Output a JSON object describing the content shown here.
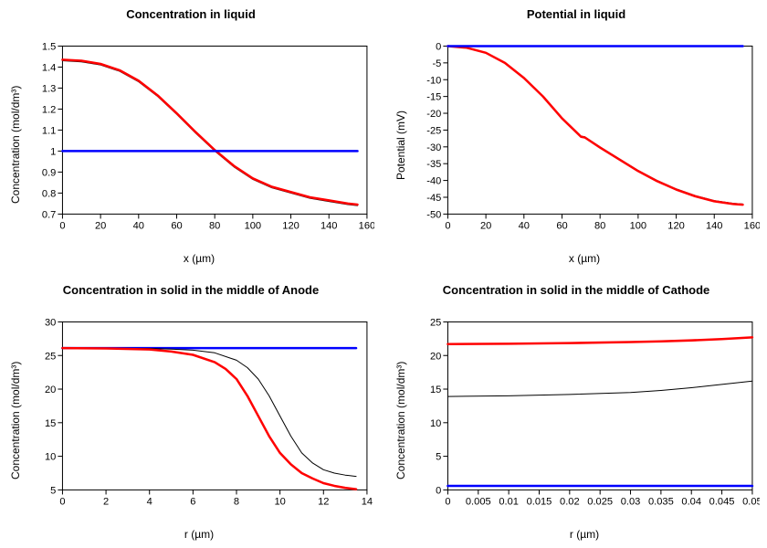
{
  "layout": {
    "cols": 2,
    "rows": 2,
    "background_color": "#ffffff"
  },
  "font": {
    "family": "Arial",
    "title_size": 13,
    "title_weight": "bold",
    "label_size": 12,
    "tick_size": 11
  },
  "colors": {
    "axis": "#000000",
    "series_red": "#ff0000",
    "series_black": "#000000",
    "series_blue": "#0000ff"
  },
  "panels": [
    {
      "id": "liq_conc",
      "title": "Concentration in liquid",
      "xlabel": "x (µm)",
      "ylabel": "Concentration (mol/dm³)",
      "xlim": [
        0,
        160
      ],
      "xtick_step": 20,
      "ylim": [
        0.7,
        1.5
      ],
      "ytick_step": 0.1,
      "series": [
        {
          "name": "black",
          "color": "#000000",
          "width": 1.0,
          "x": [
            0,
            10,
            20,
            30,
            40,
            50,
            60,
            70,
            80,
            90,
            100,
            110,
            120,
            130,
            140,
            150,
            155
          ],
          "y": [
            1.43,
            1.425,
            1.41,
            1.38,
            1.33,
            1.26,
            1.175,
            1.085,
            1.0,
            0.925,
            0.865,
            0.825,
            0.8,
            0.775,
            0.76,
            0.745,
            0.74
          ]
        },
        {
          "name": "red",
          "color": "#ff0000",
          "width": 2.5,
          "x": [
            0,
            10,
            20,
            30,
            40,
            50,
            60,
            70,
            80,
            90,
            100,
            110,
            120,
            130,
            140,
            150,
            155
          ],
          "y": [
            1.435,
            1.43,
            1.415,
            1.385,
            1.335,
            1.265,
            1.18,
            1.09,
            1.005,
            0.93,
            0.87,
            0.83,
            0.805,
            0.78,
            0.765,
            0.75,
            0.745
          ]
        },
        {
          "name": "blue",
          "color": "#0000ff",
          "width": 2.5,
          "x": [
            0,
            155
          ],
          "y": [
            1.0,
            1.0
          ]
        }
      ]
    },
    {
      "id": "liq_pot",
      "title": "Potential in liquid",
      "xlabel": "x (µm)",
      "ylabel": "Potential (mV)",
      "xlim": [
        0,
        160
      ],
      "xtick_step": 20,
      "ylim": [
        -50,
        0
      ],
      "ytick_step": 5,
      "series": [
        {
          "name": "black",
          "color": "#000000",
          "width": 1.0,
          "x": [
            0,
            10,
            20,
            30,
            40,
            50,
            60,
            70,
            72,
            80,
            90,
            100,
            110,
            120,
            130,
            140,
            150,
            155
          ],
          "y": [
            0,
            -0.5,
            -2,
            -5,
            -9.5,
            -15,
            -21.5,
            -26.8,
            -27,
            -30,
            -33.5,
            -37,
            -40,
            -42.5,
            -44.5,
            -46,
            -46.8,
            -47
          ]
        },
        {
          "name": "red",
          "color": "#ff0000",
          "width": 2.5,
          "x": [
            0,
            10,
            20,
            30,
            40,
            50,
            60,
            70,
            72,
            80,
            90,
            100,
            110,
            120,
            130,
            140,
            150,
            155
          ],
          "y": [
            0,
            -0.5,
            -2,
            -5,
            -9.5,
            -15,
            -21.5,
            -27,
            -27.2,
            -30.2,
            -33.7,
            -37.2,
            -40.2,
            -42.7,
            -44.7,
            -46.2,
            -47,
            -47.2
          ]
        },
        {
          "name": "blue",
          "color": "#0000ff",
          "width": 2.5,
          "x": [
            0,
            155
          ],
          "y": [
            0,
            0
          ]
        }
      ]
    },
    {
      "id": "anode_conc",
      "title": "Concentration in solid in the middle of Anode",
      "xlabel": "r (µm)",
      "ylabel": "Concentration (mol/dm³)",
      "xlim": [
        0,
        14
      ],
      "xtick_step": 2,
      "ylim": [
        5,
        30
      ],
      "ytick_step": 5,
      "series": [
        {
          "name": "blue",
          "color": "#0000ff",
          "width": 2.5,
          "x": [
            0,
            13.5
          ],
          "y": [
            26.1,
            26.1
          ]
        },
        {
          "name": "black",
          "color": "#000000",
          "width": 1.0,
          "x": [
            0,
            2,
            4,
            5,
            6,
            7,
            8,
            8.5,
            9,
            9.5,
            10,
            10.5,
            11,
            11.5,
            12,
            12.5,
            13,
            13.5
          ],
          "y": [
            26.1,
            26.1,
            26.05,
            25.95,
            25.8,
            25.4,
            24.3,
            23.2,
            21.5,
            19.0,
            16.0,
            13.0,
            10.5,
            9.0,
            8.0,
            7.5,
            7.2,
            7.0
          ]
        },
        {
          "name": "red",
          "color": "#ff0000",
          "width": 2.5,
          "x": [
            0,
            2,
            4,
            5,
            6,
            7,
            7.5,
            8,
            8.5,
            9,
            9.5,
            10,
            10.5,
            11,
            11.5,
            12,
            12.5,
            13,
            13.5
          ],
          "y": [
            26.1,
            26.05,
            25.9,
            25.6,
            25.1,
            24.0,
            23.0,
            21.5,
            19.0,
            16.0,
            13.0,
            10.5,
            8.8,
            7.5,
            6.7,
            6.0,
            5.6,
            5.3,
            5.1
          ]
        }
      ]
    },
    {
      "id": "cathode_conc",
      "title": "Concentration in solid in the middle of Cathode",
      "xlabel": "r (µm)",
      "ylabel": "Concentration (mol/dm³)",
      "xlim": [
        0,
        0.05
      ],
      "xtick_step": 0.005,
      "ylim": [
        0,
        25
      ],
      "ytick_step": 5,
      "series": [
        {
          "name": "blue",
          "color": "#0000ff",
          "width": 2.5,
          "x": [
            0,
            0.05
          ],
          "y": [
            0.6,
            0.6
          ]
        },
        {
          "name": "black",
          "color": "#000000",
          "width": 1.0,
          "x": [
            0,
            0.01,
            0.02,
            0.03,
            0.035,
            0.04,
            0.045,
            0.05
          ],
          "y": [
            13.9,
            14.0,
            14.2,
            14.5,
            14.8,
            15.2,
            15.7,
            16.2
          ]
        },
        {
          "name": "red",
          "color": "#ff0000",
          "width": 2.5,
          "x": [
            0,
            0.01,
            0.02,
            0.03,
            0.035,
            0.04,
            0.045,
            0.05
          ],
          "y": [
            21.7,
            21.75,
            21.85,
            22.0,
            22.1,
            22.25,
            22.45,
            22.7
          ]
        }
      ]
    }
  ]
}
